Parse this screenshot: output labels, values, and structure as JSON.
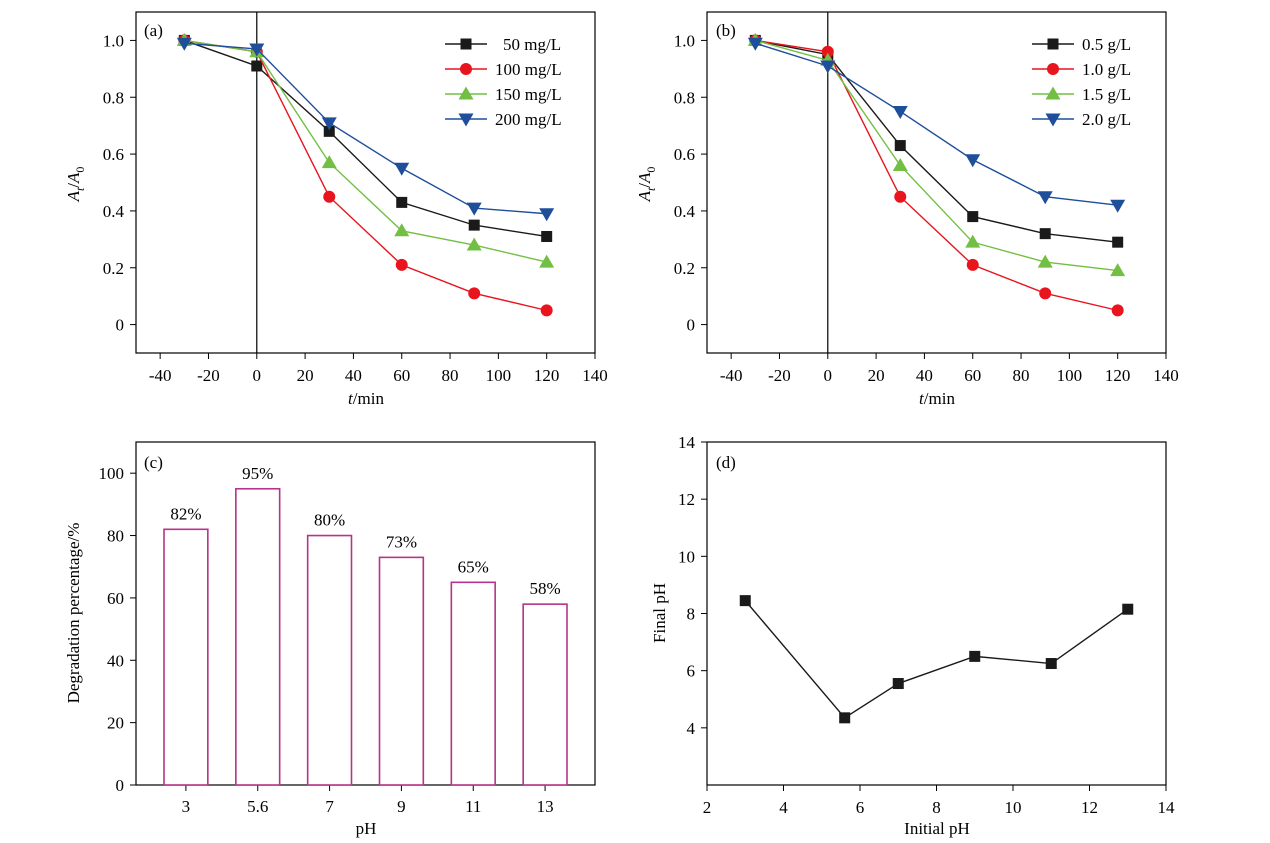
{
  "colors": {
    "black": "#1a1a1a",
    "red": "#e8141e",
    "green": "#72bf44",
    "blue": "#1f4e9a",
    "magenta": "#b5338a"
  },
  "chart_data": [
    {
      "id": "a",
      "type": "line",
      "panel_label": "(a)",
      "xlabel_italic": "t",
      "xlabel_rest": "/min",
      "ylabel": {
        "a": "A",
        "a_sub": "t",
        "slash": "/",
        "b": "A",
        "b_sub": "0"
      },
      "xlim": [
        -50,
        140
      ],
      "ylim": [
        -0.1,
        1.1
      ],
      "xticks": [
        -40,
        -20,
        0,
        20,
        40,
        60,
        80,
        100,
        120,
        140
      ],
      "yticks": [
        0,
        0.2,
        0.4,
        0.6,
        0.8,
        1.0
      ],
      "ytick_labels": [
        "0",
        "0.2",
        "0.4",
        "0.6",
        "0.8",
        "1.0"
      ],
      "vline_x": 0,
      "legend_position": "top-right",
      "series": [
        {
          "name": "50 mg/L",
          "marker": "square",
          "color": "black",
          "x": [
            -30,
            0,
            30,
            60,
            90,
            120
          ],
          "y": [
            1.0,
            0.91,
            0.68,
            0.43,
            0.35,
            0.31
          ]
        },
        {
          "name": "100 mg/L",
          "marker": "circle",
          "color": "red",
          "x": [
            -30,
            0,
            30,
            60,
            90,
            120
          ],
          "y": [
            1.0,
            0.96,
            0.45,
            0.21,
            0.11,
            0.05
          ]
        },
        {
          "name": "150 mg/L",
          "marker": "triangle-up",
          "color": "green",
          "x": [
            -30,
            0,
            30,
            60,
            90,
            120
          ],
          "y": [
            1.0,
            0.96,
            0.57,
            0.33,
            0.28,
            0.22
          ]
        },
        {
          "name": "200 mg/L",
          "marker": "triangle-down",
          "color": "blue",
          "x": [
            -30,
            0,
            30,
            60,
            90,
            120
          ],
          "y": [
            0.99,
            0.97,
            0.71,
            0.55,
            0.41,
            0.39
          ]
        }
      ]
    },
    {
      "id": "b",
      "type": "line",
      "panel_label": "(b)",
      "xlabel_italic": "t",
      "xlabel_rest": "/min",
      "ylabel": {
        "a": "A",
        "a_sub": "t",
        "slash": "/",
        "b": "A",
        "b_sub": "0"
      },
      "xlim": [
        -50,
        140
      ],
      "ylim": [
        -0.1,
        1.1
      ],
      "xticks": [
        -40,
        -20,
        0,
        20,
        40,
        60,
        80,
        100,
        120,
        140
      ],
      "yticks": [
        0,
        0.2,
        0.4,
        0.6,
        0.8,
        1.0
      ],
      "ytick_labels": [
        "0",
        "0.2",
        "0.4",
        "0.6",
        "0.8",
        "1.0"
      ],
      "vline_x": 0,
      "legend_position": "top-right",
      "series": [
        {
          "name": "0.5 g/L",
          "marker": "square",
          "color": "black",
          "x": [
            -30,
            0,
            30,
            60,
            90,
            120
          ],
          "y": [
            1.0,
            0.95,
            0.63,
            0.38,
            0.32,
            0.29
          ]
        },
        {
          "name": "1.0 g/L",
          "marker": "circle",
          "color": "red",
          "x": [
            -30,
            0,
            30,
            60,
            90,
            120
          ],
          "y": [
            1.0,
            0.96,
            0.45,
            0.21,
            0.11,
            0.05
          ]
        },
        {
          "name": "1.5 g/L",
          "marker": "triangle-up",
          "color": "green",
          "x": [
            -30,
            0,
            30,
            60,
            90,
            120
          ],
          "y": [
            1.0,
            0.93,
            0.56,
            0.29,
            0.22,
            0.19
          ]
        },
        {
          "name": "2.0 g/L",
          "marker": "triangle-down",
          "color": "blue",
          "x": [
            -30,
            0,
            30,
            60,
            90,
            120
          ],
          "y": [
            0.99,
            0.91,
            0.75,
            0.58,
            0.45,
            0.42
          ]
        }
      ]
    },
    {
      "id": "c",
      "type": "bar",
      "panel_label": "(c)",
      "xlabel": "pH",
      "ylabel": "Degradation percentage/%",
      "categories": [
        "3",
        "5.6",
        "7",
        "9",
        "11",
        "13"
      ],
      "values": [
        82,
        95,
        80,
        73,
        65,
        58
      ],
      "data_labels": [
        "82%",
        "95%",
        "80%",
        "73%",
        "65%",
        "58%"
      ],
      "ylim": [
        0,
        110
      ],
      "yticks": [
        0,
        20,
        40,
        60,
        80,
        100
      ],
      "bar_color": "magenta"
    },
    {
      "id": "d",
      "type": "line",
      "panel_label": "(d)",
      "xlabel": "Initial pH",
      "ylabel": "Final pH",
      "xlim": [
        2,
        14
      ],
      "ylim": [
        2,
        14
      ],
      "xticks": [
        2,
        4,
        6,
        8,
        10,
        12,
        14
      ],
      "yticks": [
        4,
        6,
        8,
        10,
        12,
        14
      ],
      "series": [
        {
          "marker": "square",
          "color": "black",
          "x": [
            3,
            5.6,
            7,
            9,
            11,
            13
          ],
          "y": [
            8.45,
            4.35,
            5.55,
            6.5,
            6.25,
            8.15
          ]
        }
      ]
    }
  ]
}
